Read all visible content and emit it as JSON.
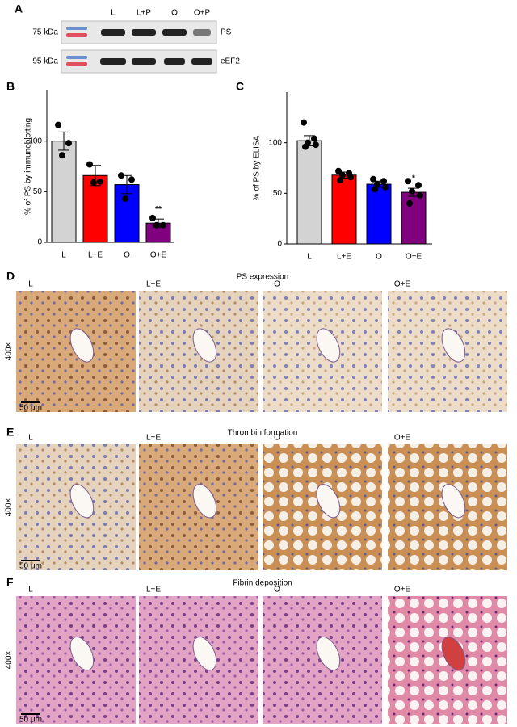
{
  "panel_labels": [
    "A",
    "B",
    "C",
    "D",
    "E",
    "F"
  ],
  "blot": {
    "lanes": [
      "L",
      "L+P",
      "O",
      "O+P"
    ],
    "rows": [
      {
        "marker": "75 kDa",
        "protein": "PS"
      },
      {
        "marker": "95 kDa",
        "protein": "eEF2"
      }
    ]
  },
  "chart_data": [
    {
      "type": "bar",
      "y_label": "% of PS by immunoblotting",
      "categories": [
        "L",
        "L+E",
        "O",
        "O+E"
      ],
      "values": [
        100,
        66,
        57,
        19
      ],
      "errors": [
        9,
        10,
        9,
        4
      ],
      "colors": [
        "#d3d3d3",
        "#ff0000",
        "#0000ff",
        "#800080"
      ],
      "points": [
        [
          116,
          98,
          86
        ],
        [
          77,
          60,
          59
        ],
        [
          66,
          62,
          43
        ],
        [
          24,
          17,
          17
        ]
      ],
      "annotations": [
        null,
        null,
        null,
        "**"
      ],
      "ylim": [
        0,
        150
      ],
      "yticks": [
        0,
        50,
        100
      ]
    },
    {
      "type": "bar",
      "y_label": "% of PS by ELISA",
      "categories": [
        "L",
        "L+E",
        "O",
        "O+E"
      ],
      "values": [
        102,
        68,
        59,
        51
      ],
      "errors": [
        5,
        3,
        3,
        4
      ],
      "colors": [
        "#d3d3d3",
        "#ff0000",
        "#0000ff",
        "#800080"
      ],
      "points": [
        [
          120,
          104,
          100,
          98,
          96
        ],
        [
          72,
          70,
          68,
          66,
          63
        ],
        [
          64,
          62,
          59,
          56,
          54
        ],
        [
          62,
          58,
          52,
          48,
          40
        ]
      ],
      "annotations": [
        null,
        null,
        null,
        "*"
      ],
      "ylim": [
        0,
        150
      ],
      "yticks": [
        0,
        50,
        100
      ]
    }
  ],
  "histology": {
    "magnification": "400×",
    "scale_bar": "50 μm",
    "sections": [
      {
        "title": "PS expression",
        "columns": [
          "L",
          "L+E",
          "O",
          "O+E"
        ]
      },
      {
        "title": "Thrombin formation",
        "columns": [
          "L",
          "L+E",
          "O",
          "O+E"
        ]
      },
      {
        "title": "Fibrin deposition",
        "columns": [
          "L",
          "L+E",
          "O",
          "O+E"
        ]
      }
    ]
  }
}
